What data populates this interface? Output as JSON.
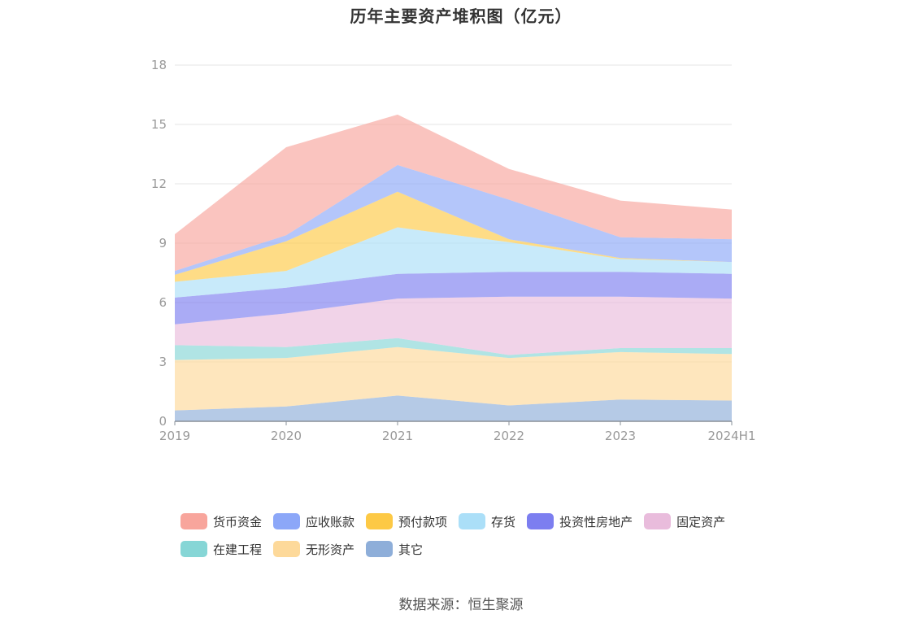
{
  "source_text": "数据来源：恒生聚源",
  "chart_data": {
    "type": "area",
    "stacked": true,
    "title": "历年主要资产堆积图（亿元）",
    "xlabel": "",
    "ylabel": "",
    "categories": [
      "2019",
      "2020",
      "2021",
      "2022",
      "2023",
      "2024H1"
    ],
    "ylim": [
      0,
      18
    ],
    "yticks": [
      0,
      3,
      6,
      9,
      12,
      15,
      18
    ],
    "grid": true,
    "legend_position": "bottom",
    "series": [
      {
        "name": "其它",
        "color": "#8eaed9",
        "values": [
          0.55,
          0.75,
          1.3,
          0.8,
          1.1,
          1.05
        ]
      },
      {
        "name": "无形资产",
        "color": "#fdd99a",
        "values": [
          2.55,
          2.45,
          2.45,
          2.4,
          2.4,
          2.35
        ]
      },
      {
        "name": "在建工程",
        "color": "#86d6d6",
        "values": [
          0.75,
          0.55,
          0.45,
          0.15,
          0.2,
          0.3
        ]
      },
      {
        "name": "固定资产",
        "color": "#e9bcdc",
        "values": [
          1.05,
          1.7,
          2.0,
          2.95,
          2.6,
          2.5
        ]
      },
      {
        "name": "投资性房地产",
        "color": "#7c7ef0",
        "values": [
          1.35,
          1.3,
          1.25,
          1.25,
          1.25,
          1.25
        ]
      },
      {
        "name": "存货",
        "color": "#abdff8",
        "values": [
          0.8,
          0.85,
          2.35,
          1.5,
          0.65,
          0.6
        ]
      },
      {
        "name": "预付款项",
        "color": "#fdc945",
        "values": [
          0.35,
          1.5,
          1.8,
          0.15,
          0.05,
          0.0
        ]
      },
      {
        "name": "应收账款",
        "color": "#8ca7f8",
        "values": [
          0.2,
          0.3,
          1.35,
          2.0,
          1.05,
          1.15
        ]
      },
      {
        "name": "货币资金",
        "color": "#f8a59c",
        "values": [
          1.85,
          4.45,
          2.55,
          1.55,
          1.85,
          1.5
        ]
      }
    ],
    "legend_order": [
      "货币资金",
      "应收账款",
      "预付款项",
      "存货",
      "投资性房地产",
      "固定资产",
      "在建工程",
      "无形资产",
      "其它"
    ]
  }
}
